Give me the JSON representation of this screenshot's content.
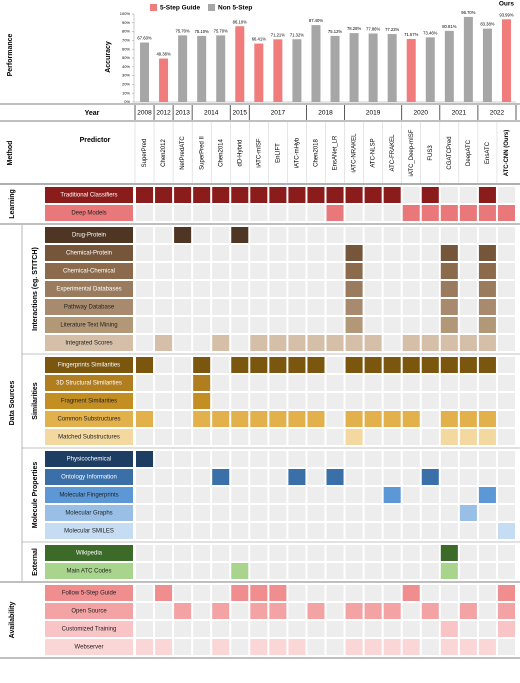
{
  "chart_data": {
    "type": "bar",
    "y_label": "Accuracy",
    "annotation": "Ours",
    "legend": "top-left",
    "categories": [
      "SuperPred",
      "Chen2012",
      "NetPredATC",
      "SuperPred II",
      "Chen2014",
      "dD-Hybrid",
      "iATC-mISF",
      "EnLIFT",
      "iATC-mHyb",
      "Chen2018",
      "EnsANet_LR",
      "iATC-NRAKEL",
      "ATC-NLSP",
      "ATC-FRAKEL",
      "iATC_Deep-mISF",
      "FUS3",
      "CGATCPred",
      "DeepATC",
      "EnsATC",
      "ATC-CNN (Ours)"
    ],
    "series": [
      {
        "name": "5-Step Guide",
        "color": "#f07c7c",
        "values": [
          null,
          49.38,
          null,
          null,
          null,
          86.1,
          66.41,
          71.21,
          null,
          null,
          null,
          null,
          null,
          null,
          71.57,
          null,
          null,
          null,
          null,
          93.99
        ],
        "value_labels": [
          null,
          "49.38%",
          null,
          null,
          null,
          "86.10%",
          "66.41%",
          "71.21%",
          null,
          null,
          null,
          null,
          null,
          null,
          "71.57%",
          null,
          null,
          null,
          null,
          "93.99%"
        ]
      },
      {
        "name": "Non 5-Step",
        "color": "#a6a6a6",
        "values": [
          67.6,
          null,
          75.7,
          75.1,
          75.7,
          null,
          null,
          null,
          71.32,
          87.4,
          75.12,
          78.28,
          77.86,
          77.22,
          null,
          73.46,
          80.81,
          96.7,
          83.38,
          null
        ],
        "value_labels": [
          "67.60%",
          null,
          "75.70%",
          "75.10%",
          "75.70%",
          null,
          null,
          null,
          "71.32%",
          "87.40%",
          "75.12%",
          "78.28%",
          "77.86%",
          "77.22%",
          null,
          "73.46%",
          "80.81%",
          "96.70%",
          "83.38%",
          null
        ]
      }
    ],
    "ylim": [
      0,
      100
    ],
    "yticks": [
      {
        "value": 0,
        "label": "0%"
      },
      {
        "value": 10,
        "label": "10%"
      },
      {
        "value": 20,
        "label": "20%"
      },
      {
        "value": 30,
        "label": "30%"
      },
      {
        "value": 40,
        "label": "40%"
      },
      {
        "value": 50,
        "label": "50%"
      },
      {
        "value": 60,
        "label": "60%"
      },
      {
        "value": 70,
        "label": "70%"
      },
      {
        "value": 80,
        "label": "80%"
      },
      {
        "value": 90,
        "label": "90%"
      },
      {
        "value": 100,
        "label": "100%"
      }
    ]
  },
  "labels": {
    "performance": "Performance",
    "year": "Year",
    "method": "Method",
    "predictor": "Predictor"
  },
  "years": [
    "2008",
    "2012",
    "2013",
    "2014",
    "2014",
    "2015",
    "2017",
    "2017",
    "2017",
    "2018",
    "2018",
    "2019",
    "2019",
    "2019",
    "2020",
    "2020",
    "2021",
    "2021",
    "2022",
    "2022"
  ],
  "sections": [
    {
      "name": "Learning",
      "rows": [
        {
          "name": "Traditional Classifiers",
          "color": "#8b1c1c",
          "cells": [
            true,
            true,
            true,
            true,
            true,
            true,
            true,
            true,
            true,
            true,
            true,
            true,
            true,
            true,
            false,
            true,
            false,
            false,
            true,
            false
          ]
        },
        {
          "name": "Deep Models",
          "color": "#e8787a",
          "cells": [
            false,
            false,
            false,
            false,
            false,
            false,
            false,
            false,
            false,
            false,
            true,
            false,
            false,
            false,
            true,
            true,
            true,
            true,
            true,
            true
          ]
        }
      ]
    },
    {
      "name": "Data Sources",
      "subsections": [
        {
          "name": "Interactions (eg. STITCH)",
          "rows": [
            {
              "name": "Drug-Protein",
              "color": "#4e3524",
              "cells": [
                false,
                false,
                true,
                false,
                false,
                true,
                false,
                false,
                false,
                false,
                false,
                false,
                false,
                false,
                false,
                false,
                false,
                false,
                false,
                false
              ]
            },
            {
              "name": "Chemical-Protein",
              "color": "#76563a",
              "cells": [
                false,
                false,
                false,
                false,
                false,
                false,
                false,
                false,
                false,
                false,
                false,
                true,
                false,
                false,
                false,
                false,
                true,
                false,
                true,
                false
              ]
            },
            {
              "name": "Chemical-Chemical",
              "color": "#8c6b4d",
              "cells": [
                false,
                false,
                false,
                false,
                false,
                false,
                false,
                false,
                false,
                false,
                false,
                true,
                false,
                false,
                false,
                false,
                true,
                false,
                true,
                false
              ]
            },
            {
              "name": "Experimental Databases",
              "color": "#9a7b5e",
              "cells": [
                false,
                false,
                false,
                false,
                false,
                false,
                false,
                false,
                false,
                false,
                false,
                true,
                false,
                false,
                false,
                false,
                true,
                false,
                true,
                false
              ]
            },
            {
              "name": "Pathway Database",
              "color": "#a88b6e",
              "cells": [
                false,
                false,
                false,
                false,
                false,
                false,
                false,
                false,
                false,
                false,
                false,
                true,
                false,
                false,
                false,
                false,
                true,
                false,
                true,
                false
              ]
            },
            {
              "name": "Literature Text Mining",
              "color": "#b39878",
              "cells": [
                false,
                false,
                false,
                false,
                false,
                false,
                false,
                false,
                false,
                false,
                false,
                true,
                false,
                false,
                false,
                false,
                true,
                false,
                true,
                false
              ]
            },
            {
              "name": "Integrated Scores",
              "color": "#d6bfa8",
              "cells": [
                false,
                true,
                false,
                false,
                true,
                false,
                true,
                true,
                true,
                true,
                true,
                true,
                true,
                false,
                true,
                true,
                true,
                true,
                true,
                false
              ]
            }
          ]
        },
        {
          "name": "Similarities",
          "rows": [
            {
              "name": "Fingerprints Similarities",
              "color": "#7a560f",
              "cells": [
                true,
                false,
                false,
                true,
                false,
                true,
                true,
                true,
                true,
                true,
                false,
                true,
                true,
                true,
                true,
                true,
                true,
                true,
                true,
                false
              ]
            },
            {
              "name": "3D Structural Similarities",
              "color": "#b07d1f",
              "cells": [
                false,
                false,
                false,
                true,
                false,
                false,
                false,
                false,
                false,
                false,
                false,
                false,
                false,
                false,
                false,
                false,
                false,
                false,
                false,
                false
              ]
            },
            {
              "name": "Fragment Similarities",
              "color": "#c48f22",
              "cells": [
                false,
                false,
                false,
                true,
                false,
                false,
                false,
                false,
                false,
                false,
                false,
                false,
                false,
                false,
                false,
                false,
                false,
                false,
                false,
                false
              ]
            },
            {
              "name": "Common Substructures",
              "color": "#e3b14c",
              "cells": [
                true,
                false,
                false,
                true,
                true,
                true,
                true,
                true,
                true,
                true,
                false,
                true,
                true,
                true,
                true,
                false,
                true,
                true,
                true,
                false
              ]
            },
            {
              "name": "Matched Substructures",
              "color": "#f3d9a0",
              "cells": [
                false,
                false,
                false,
                false,
                false,
                false,
                false,
                false,
                false,
                false,
                false,
                true,
                false,
                false,
                false,
                false,
                true,
                true,
                true,
                false
              ]
            }
          ]
        },
        {
          "name": "Molecule Properties",
          "rows": [
            {
              "name": "Physicochemical",
              "color": "#1e3d63",
              "cells": [
                true,
                false,
                false,
                false,
                false,
                false,
                false,
                false,
                false,
                false,
                false,
                false,
                false,
                false,
                false,
                false,
                false,
                false,
                false,
                false
              ]
            },
            {
              "name": "Ontology Information",
              "color": "#3a6fa8",
              "cells": [
                false,
                false,
                false,
                false,
                true,
                false,
                false,
                false,
                true,
                false,
                true,
                false,
                false,
                false,
                false,
                true,
                false,
                false,
                false,
                false
              ]
            },
            {
              "name": "Molecular Fingerprints",
              "color": "#5d98d6",
              "cells": [
                false,
                false,
                false,
                false,
                false,
                false,
                false,
                false,
                false,
                false,
                false,
                false,
                false,
                true,
                false,
                false,
                false,
                false,
                true,
                false
              ]
            },
            {
              "name": "Molecular Graphs",
              "color": "#99bfe6",
              "cells": [
                false,
                false,
                false,
                false,
                false,
                false,
                false,
                false,
                false,
                false,
                false,
                false,
                false,
                false,
                false,
                false,
                false,
                true,
                false,
                false
              ]
            },
            {
              "name": "Molecular SMILES",
              "color": "#c6dcf2",
              "cells": [
                false,
                false,
                false,
                false,
                false,
                false,
                false,
                false,
                false,
                false,
                false,
                false,
                false,
                false,
                false,
                false,
                false,
                false,
                false,
                true
              ]
            }
          ]
        },
        {
          "name": "External",
          "rows": [
            {
              "name": "Wikipedia",
              "color": "#3b6a29",
              "cells": [
                false,
                false,
                false,
                false,
                false,
                false,
                false,
                false,
                false,
                false,
                false,
                false,
                false,
                false,
                false,
                false,
                true,
                false,
                false,
                false
              ]
            },
            {
              "name": "Main ATC Codes",
              "color": "#a8d48e",
              "cells": [
                false,
                false,
                false,
                false,
                false,
                true,
                false,
                false,
                false,
                false,
                false,
                false,
                false,
                false,
                false,
                false,
                true,
                false,
                false,
                false
              ]
            }
          ]
        }
      ]
    },
    {
      "name": "Availability",
      "rows": [
        {
          "name": "Follow 5-Step Guide",
          "color": "#f08d8f",
          "cells": [
            false,
            true,
            false,
            false,
            false,
            true,
            true,
            true,
            false,
            false,
            false,
            false,
            false,
            false,
            true,
            false,
            false,
            false,
            false,
            true
          ]
        },
        {
          "name": "Open Source",
          "color": "#f4a3a5",
          "cells": [
            false,
            false,
            true,
            false,
            true,
            false,
            true,
            true,
            false,
            true,
            false,
            true,
            true,
            true,
            false,
            true,
            false,
            true,
            false,
            true
          ]
        },
        {
          "name": "Customized Training",
          "color": "#f8c4c5",
          "cells": [
            false,
            false,
            false,
            false,
            false,
            false,
            false,
            false,
            false,
            false,
            false,
            false,
            false,
            false,
            false,
            false,
            true,
            false,
            false,
            true
          ]
        },
        {
          "name": "Webserver",
          "color": "#fbd6d7",
          "cells": [
            true,
            true,
            false,
            false,
            true,
            false,
            true,
            true,
            true,
            false,
            false,
            true,
            true,
            true,
            true,
            false,
            true,
            true,
            true,
            false
          ]
        }
      ]
    }
  ]
}
